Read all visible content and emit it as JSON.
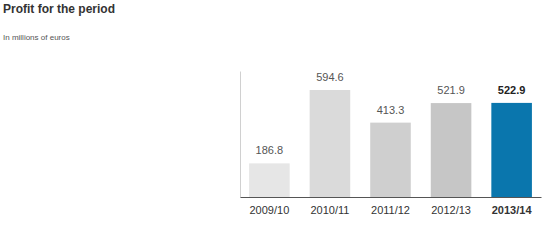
{
  "chart_data": {
    "type": "bar",
    "title": "Profit for the period",
    "subtitle": "In millions of euros",
    "categories": [
      "2009/10",
      "2010/11",
      "2011/12",
      "2012/13",
      "2013/14"
    ],
    "values": [
      186.8,
      594.6,
      413.3,
      521.9,
      522.9
    ],
    "colors": [
      "#e6e6e6",
      "#dadada",
      "#cfcfcf",
      "#c6c6c6",
      "#0a76ad"
    ],
    "ylim": [
      0,
      700
    ],
    "data_labels": true,
    "tick_labels": "x"
  }
}
